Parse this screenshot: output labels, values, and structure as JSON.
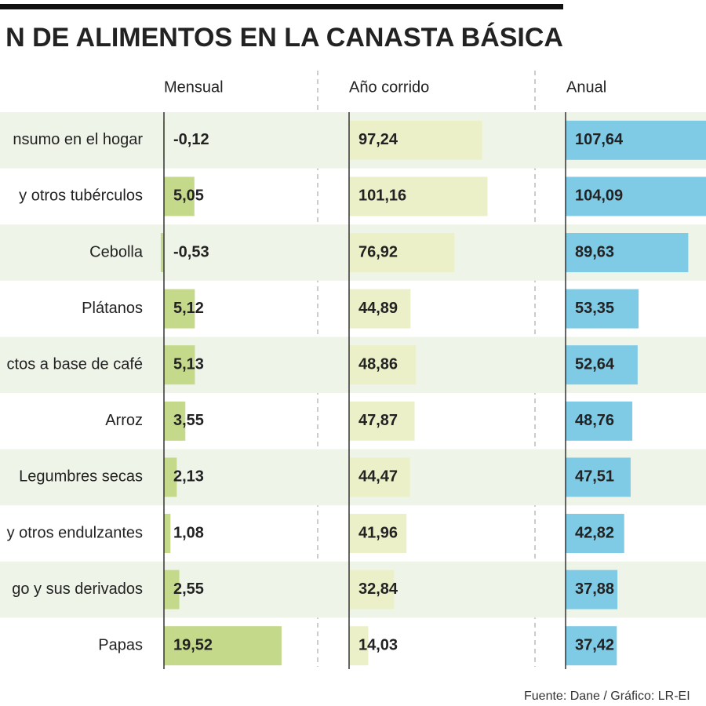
{
  "chart_data": {
    "type": "bar",
    "orientation": "horizontal",
    "title": "N DE ALIMENTOS EN LA CANASTA BÁSICA",
    "source": "Fuente: Dane  / Gráfico: LR-EI",
    "categories": [
      "nsumo en el hogar",
      "y otros tubérculos",
      "Cebolla",
      "Plátanos",
      "ctos a base de café",
      "Arroz",
      "Legumbres secas",
      "y otros endulzantes",
      "go y sus derivados",
      "Papas"
    ],
    "series": [
      {
        "name": "Mensual",
        "color": "#c5d98a",
        "values": [
          -0.12,
          5.05,
          -0.53,
          5.12,
          5.13,
          3.55,
          2.13,
          1.08,
          2.55,
          19.52
        ],
        "value_labels": [
          "-0,12",
          "5,05",
          "-0,53",
          "5,12",
          "5,13",
          "3,55",
          "2,13",
          "1,08",
          "2,55",
          "19,52"
        ]
      },
      {
        "name": "Año corrido",
        "color": "#ebf0c8",
        "values": [
          97.24,
          101.16,
          76.92,
          44.89,
          48.86,
          47.87,
          44.47,
          41.96,
          32.84,
          14.03
        ],
        "value_labels": [
          "97,24",
          "101,16",
          "76,92",
          "44,89",
          "48,86",
          "47,87",
          "44,47",
          "41,96",
          "32,84",
          "14,03"
        ]
      },
      {
        "name": "Anual",
        "color": "#7fcbe6",
        "values": [
          107.64,
          104.09,
          89.63,
          53.35,
          52.64,
          48.76,
          47.51,
          42.82,
          37.88,
          37.42
        ],
        "value_labels": [
          "107,64",
          "104,09",
          "89,63",
          "53,35",
          "52,64",
          "48,76",
          "47,51",
          "42,82",
          "37,88",
          "37,42"
        ]
      }
    ]
  }
}
